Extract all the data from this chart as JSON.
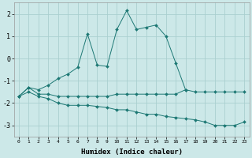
{
  "xlabel": "Humidex (Indice chaleur)",
  "x": [
    0,
    1,
    2,
    3,
    4,
    5,
    6,
    7,
    8,
    9,
    10,
    11,
    12,
    13,
    14,
    15,
    16,
    17,
    18,
    19,
    20,
    21,
    22,
    23
  ],
  "line1": [
    -1.7,
    -1.3,
    -1.6,
    -1.6,
    -1.7,
    -1.7,
    -1.7,
    -1.7,
    -1.7,
    -1.7,
    -1.6,
    -1.6,
    -1.6,
    -1.6,
    -1.6,
    -1.6,
    -1.6,
    -1.4,
    -1.5,
    -1.5,
    -1.5,
    -1.5,
    -1.5,
    -1.5
  ],
  "line2_x": [
    0,
    1,
    2,
    3,
    4,
    5,
    6,
    7,
    8,
    9,
    10,
    11,
    12,
    13,
    14,
    15,
    16,
    17
  ],
  "line2_y": [
    -1.7,
    -1.3,
    -1.4,
    -1.2,
    -0.9,
    -0.7,
    -0.4,
    1.1,
    -0.3,
    -0.35,
    1.3,
    2.15,
    1.3,
    1.4,
    1.5,
    1.0,
    -0.2,
    -1.4
  ],
  "line3": [
    -1.7,
    -1.5,
    -1.7,
    -1.8,
    -2.0,
    -2.1,
    -2.1,
    -2.1,
    -2.15,
    -2.2,
    -2.3,
    -2.3,
    -2.4,
    -2.5,
    -2.5,
    -2.6,
    -2.65,
    -2.7,
    -2.75,
    -2.85,
    -3.0,
    -3.0,
    -3.0,
    -2.85
  ],
  "color": "#1d7874",
  "background_color": "#cce8e8",
  "grid_color": "#aacfcf",
  "ylim": [
    -3.5,
    2.5
  ],
  "xlim": [
    -0.5,
    23.5
  ],
  "yticks": [
    -3,
    -2,
    -1,
    0,
    1,
    2
  ],
  "xticks": [
    0,
    1,
    2,
    3,
    4,
    5,
    6,
    7,
    8,
    9,
    10,
    11,
    12,
    13,
    14,
    15,
    16,
    17,
    18,
    19,
    20,
    21,
    22,
    23
  ]
}
